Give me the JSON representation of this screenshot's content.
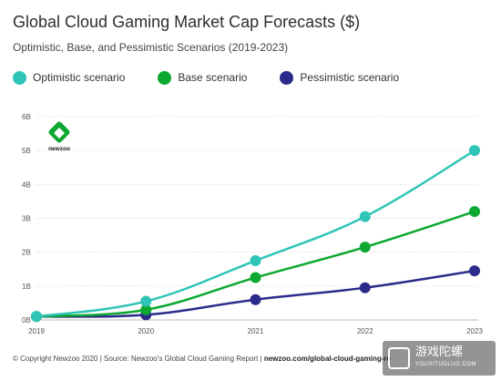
{
  "header": {
    "title": "Global Cloud Gaming Market Cap Forecasts ($)",
    "subtitle": "Optimistic, Base, and Pessimistic Scenarios (2019-2023)"
  },
  "logo": {
    "text": "newzoo"
  },
  "footer": {
    "copyright": "© Copyright Newzoo 2020 | Source: Newzoo’s Global Cloud Gaming Report | ",
    "url": "newzoo.com/global-cloud-gaming-re"
  },
  "watermark": {
    "text": "游戏陀螺",
    "sub": "YOUXITUOLUO.COM"
  },
  "colors": {
    "optimistic": "#2ec4b6",
    "base": "#0ca830",
    "pessimistic": "#2b2b8c",
    "grid": "#d8d8d8",
    "axis_text": "#555555"
  },
  "chart_data": {
    "type": "line",
    "title": "Global Cloud Gaming Market Cap Forecasts ($)",
    "subtitle": "Optimistic, Base, and Pessimistic Scenarios (2019-2023)",
    "x": [
      "2019",
      "2020",
      "2021",
      "2022",
      "2023"
    ],
    "y_ticks": [
      "0B",
      "1B",
      "2B",
      "3B",
      "4B",
      "5B",
      "6B"
    ],
    "ylim": [
      0,
      6
    ],
    "grid": true,
    "legend_position": "top",
    "series": [
      {
        "name": "Optimistic scenario",
        "color_key": "optimistic",
        "values": [
          0.1,
          0.55,
          1.75,
          3.05,
          5.0
        ]
      },
      {
        "name": "Base scenario",
        "color_key": "base",
        "values": [
          0.1,
          0.3,
          1.25,
          2.15,
          3.2
        ]
      },
      {
        "name": "Pessimistic scenario",
        "color_key": "pessimistic",
        "values": [
          0.1,
          0.15,
          0.6,
          0.95,
          1.45
        ]
      }
    ]
  }
}
